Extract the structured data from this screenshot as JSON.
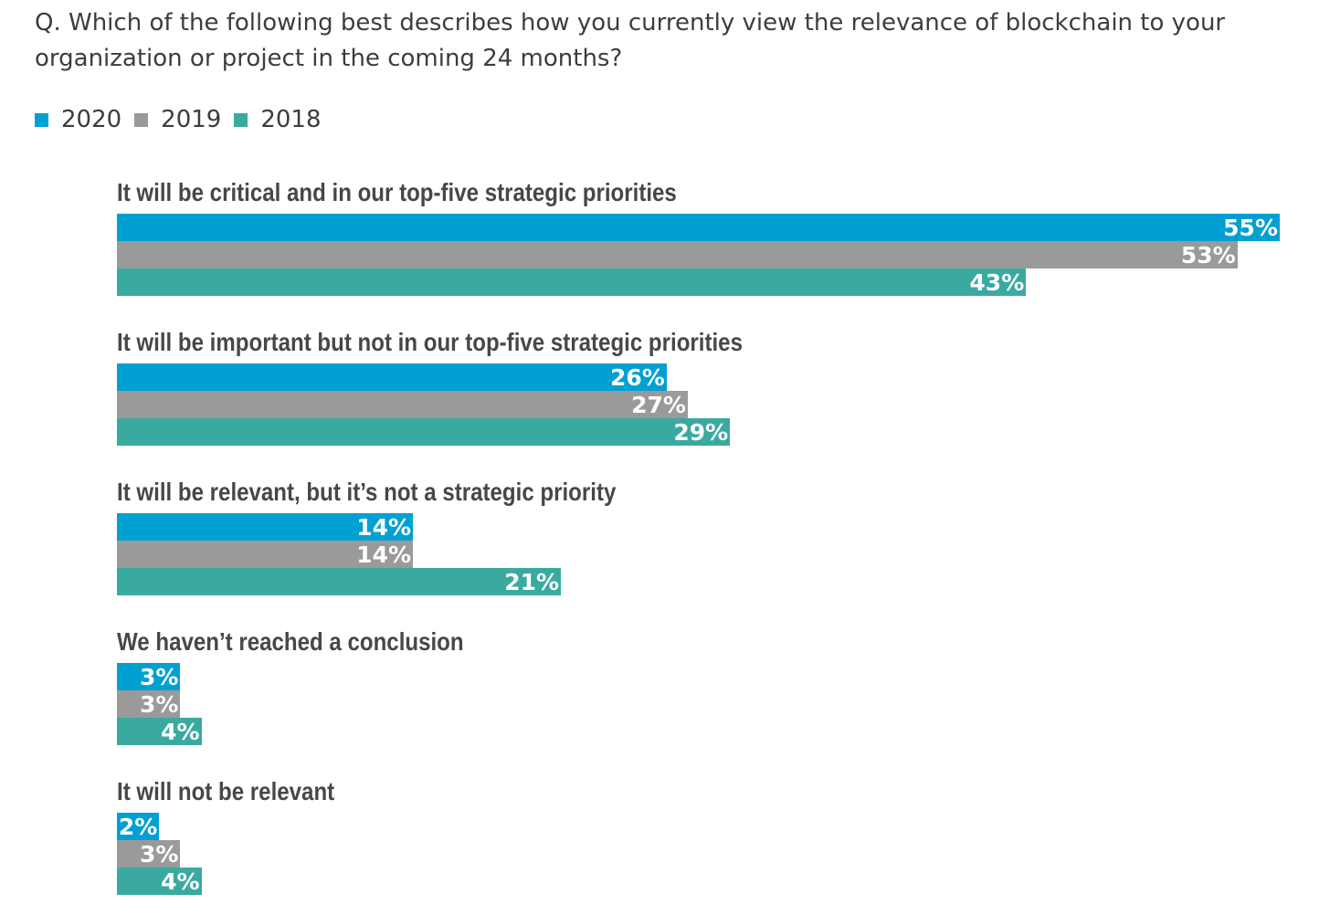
{
  "question": "Q. Which of the following best describes how you currently view the relevance of blockchain to your organization or project in the coming 24 months?",
  "chart_data": {
    "type": "bar",
    "orientation": "horizontal",
    "title": "Q. Which of the following best describes how you currently view the relevance of blockchain to your organization or project in the coming 24 months?",
    "categories": [
      "It will be critical and in our top-five strategic priorities",
      "It will be important but not in our top-five strategic priorities",
      "It will be relevant, but it’s not a strategic priority",
      "We haven’t reached a conclusion",
      "It will not be relevant"
    ],
    "series": [
      {
        "name": "2020",
        "color": "#00a0d2",
        "values": [
          55,
          26,
          14,
          3,
          2
        ]
      },
      {
        "name": "2019",
        "color": "#9a9a9a",
        "values": [
          53,
          27,
          14,
          3,
          3
        ]
      },
      {
        "name": "2018",
        "color": "#3aaaa0",
        "values": [
          43,
          29,
          21,
          4,
          4
        ]
      }
    ],
    "value_suffix": "%",
    "xlim": [
      0,
      55
    ],
    "legend_position": "top-left",
    "xlabel": "",
    "ylabel": "",
    "grid": false
  }
}
